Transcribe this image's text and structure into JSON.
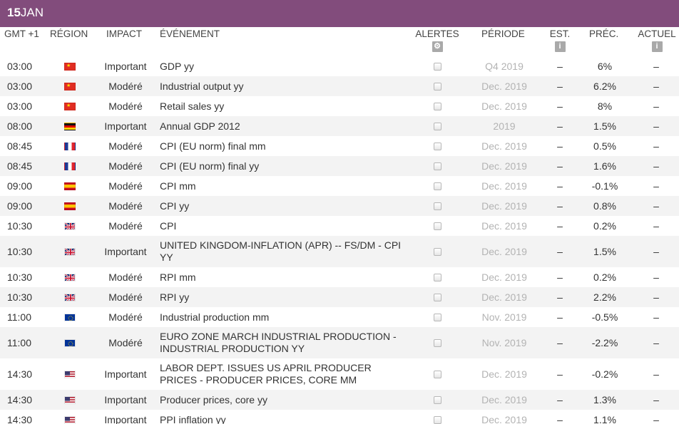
{
  "date_bar": {
    "day": "15",
    "month": "JAN"
  },
  "header": {
    "gmt": "GMT +1",
    "region": "RÉGION",
    "impact": "IMPACT",
    "event": "ÉVÉNEMENT",
    "alerts": "ALERTES",
    "period": "PÉRIODE",
    "est": "EST.",
    "prev": "PRÉC.",
    "actual": "ACTUEL",
    "alerts_icon": "gear-icon",
    "est_icon": "info-icon",
    "actual_icon": "info-icon"
  },
  "colors": {
    "accent": "#824c7c",
    "row_alt": "#f3f3f3",
    "period_text": "#b3b3b3"
  },
  "rows": [
    {
      "time": "03:00",
      "region": "china-flag-icon",
      "impact": "Important",
      "event": "GDP yy",
      "period": "Q4 2019",
      "est": "–",
      "prev": "6%",
      "actual": "–"
    },
    {
      "time": "03:00",
      "region": "china-flag-icon",
      "impact": "Modéré",
      "event": "Industrial output yy",
      "period": "Dec. 2019",
      "est": "–",
      "prev": "6.2%",
      "actual": "–"
    },
    {
      "time": "03:00",
      "region": "china-flag-icon",
      "impact": "Modéré",
      "event": "Retail sales yy",
      "period": "Dec. 2019",
      "est": "–",
      "prev": "8%",
      "actual": "–"
    },
    {
      "time": "08:00",
      "region": "germany-flag-icon",
      "impact": "Important",
      "event": "Annual GDP 2012",
      "period": "2019",
      "est": "–",
      "prev": "1.5%",
      "actual": "–"
    },
    {
      "time": "08:45",
      "region": "france-flag-icon",
      "impact": "Modéré",
      "event": "CPI (EU norm) final mm",
      "period": "Dec. 2019",
      "est": "–",
      "prev": "0.5%",
      "actual": "–"
    },
    {
      "time": "08:45",
      "region": "france-flag-icon",
      "impact": "Modéré",
      "event": "CPI (EU norm) final yy",
      "period": "Dec. 2019",
      "est": "–",
      "prev": "1.6%",
      "actual": "–"
    },
    {
      "time": "09:00",
      "region": "spain-flag-icon",
      "impact": "Modéré",
      "event": "CPI mm",
      "period": "Dec. 2019",
      "est": "–",
      "prev": "-0.1%",
      "actual": "–"
    },
    {
      "time": "09:00",
      "region": "spain-flag-icon",
      "impact": "Modéré",
      "event": "CPI yy",
      "period": "Dec. 2019",
      "est": "–",
      "prev": "0.8%",
      "actual": "–"
    },
    {
      "time": "10:30",
      "region": "uk-flag-icon",
      "impact": "Modéré",
      "event": "CPI",
      "period": "Dec. 2019",
      "est": "–",
      "prev": "0.2%",
      "actual": "–"
    },
    {
      "time": "10:30",
      "region": "uk-flag-icon",
      "impact": "Important",
      "event": "UNITED KINGDOM-INFLATION (APR) -- FS/DM - CPI YY",
      "period": "Dec. 2019",
      "est": "–",
      "prev": "1.5%",
      "actual": "–"
    },
    {
      "time": "10:30",
      "region": "uk-flag-icon",
      "impact": "Modéré",
      "event": "RPI mm",
      "period": "Dec. 2019",
      "est": "–",
      "prev": "0.2%",
      "actual": "–"
    },
    {
      "time": "10:30",
      "region": "uk-flag-icon",
      "impact": "Modéré",
      "event": "RPI yy",
      "period": "Dec. 2019",
      "est": "–",
      "prev": "2.2%",
      "actual": "–"
    },
    {
      "time": "11:00",
      "region": "eu-flag-icon",
      "impact": "Modéré",
      "event": "Industrial production mm",
      "period": "Nov. 2019",
      "est": "–",
      "prev": "-0.5%",
      "actual": "–"
    },
    {
      "time": "11:00",
      "region": "eu-flag-icon",
      "impact": "Modéré",
      "event": "EURO ZONE MARCH INDUSTRIAL PRODUCTION - INDUSTRIAL PRODUCTION YY",
      "period": "Nov. 2019",
      "est": "–",
      "prev": "-2.2%",
      "actual": "–"
    },
    {
      "time": "14:30",
      "region": "us-flag-icon",
      "impact": "Important",
      "event": "LABOR DEPT. ISSUES US APRIL PRODUCER PRICES - PRODUCER PRICES, CORE MM",
      "period": "Dec. 2019",
      "est": "–",
      "prev": "-0.2%",
      "actual": "–"
    },
    {
      "time": "14:30",
      "region": "us-flag-icon",
      "impact": "Important",
      "event": "Producer prices, core yy",
      "period": "Dec. 2019",
      "est": "–",
      "prev": "1.3%",
      "actual": "–"
    },
    {
      "time": "14:30",
      "region": "us-flag-icon",
      "impact": "Important",
      "event": "PPI inflation yy",
      "period": "Dec. 2019",
      "est": "–",
      "prev": "1.1%",
      "actual": "–"
    }
  ]
}
